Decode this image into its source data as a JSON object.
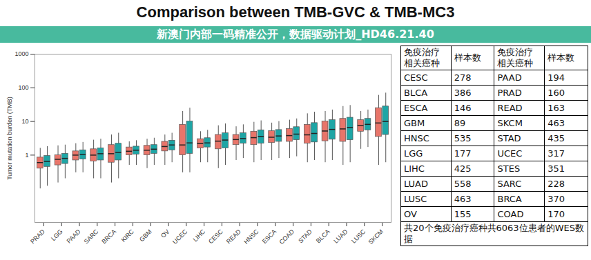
{
  "overlay_text": "新澳门内部一码精准公开，数据驱动计划_HD46.21.40",
  "chart_data": {
    "type": "box",
    "title": "Comparison between TMB-GVC & TMB-MC3",
    "ylabel": "Tumor mutation burden (TMB)",
    "log": "y",
    "ylim": [
      0.01,
      1000
    ],
    "yticks": [
      1,
      10,
      100,
      1000
    ],
    "categories": [
      "PRAD",
      "LGG",
      "PAAD",
      "SARC",
      "BRCA",
      "KIRC",
      "GBM",
      "OV",
      "UCEC",
      "LIHC",
      "CESC",
      "READ",
      "HNSC",
      "ESCA",
      "COAD",
      "STAD",
      "BLCA",
      "LUAD",
      "LUSC",
      "SKCM"
    ],
    "series": [
      {
        "name": "TMB-GVC",
        "color": "#e8756a",
        "whisker_low": [
          0.1,
          0.15,
          0.3,
          0.2,
          0.15,
          0.5,
          0.4,
          0.5,
          0.3,
          0.6,
          0.4,
          0.7,
          0.6,
          0.7,
          0.8,
          0.6,
          0.6,
          0.5,
          1.5,
          0.5
        ],
        "q1": [
          0.4,
          0.5,
          0.7,
          0.65,
          0.6,
          1.0,
          1.0,
          1.3,
          1.0,
          1.6,
          1.5,
          2.0,
          2.0,
          2.3,
          2.5,
          2.2,
          2.6,
          2.5,
          5.0,
          3.5
        ],
        "median": [
          0.6,
          0.75,
          1.0,
          1.0,
          1.1,
          1.3,
          1.4,
          1.8,
          2.0,
          2.2,
          2.6,
          2.9,
          3.3,
          3.4,
          3.8,
          4.0,
          5.2,
          6.0,
          7.5,
          9.0
        ],
        "q3": [
          0.85,
          1.0,
          1.3,
          1.5,
          2.0,
          1.7,
          1.9,
          2.5,
          8.0,
          3.0,
          4.0,
          4.0,
          5.0,
          5.2,
          6.0,
          8.0,
          10,
          12,
          11,
          25
        ],
        "whisker_high": [
          1.6,
          1.9,
          2.2,
          2.8,
          4.0,
          2.5,
          3.0,
          4.0,
          20,
          5.0,
          7.5,
          7.0,
          9.5,
          9.0,
          11,
          17,
          20,
          28,
          20,
          60
        ]
      },
      {
        "name": "TMB-MC3",
        "color": "#1ea5a5",
        "whisker_low": [
          0.12,
          0.2,
          0.3,
          0.2,
          0.2,
          0.5,
          0.5,
          0.6,
          0.3,
          0.6,
          0.5,
          0.8,
          0.7,
          0.8,
          0.9,
          0.7,
          0.7,
          0.6,
          1.7,
          0.6
        ],
        "q1": [
          0.45,
          0.55,
          0.75,
          0.7,
          0.7,
          1.05,
          1.1,
          1.4,
          1.1,
          1.7,
          1.6,
          2.2,
          2.2,
          2.5,
          2.8,
          2.4,
          2.9,
          2.8,
          5.5,
          4.0
        ],
        "median": [
          0.65,
          0.8,
          1.05,
          1.1,
          1.2,
          1.4,
          1.5,
          2.0,
          2.3,
          2.3,
          2.8,
          3.1,
          3.6,
          3.7,
          4.2,
          4.4,
          5.8,
          6.6,
          8.2,
          10
        ],
        "q3": [
          0.95,
          1.1,
          1.4,
          1.6,
          2.2,
          1.8,
          2.0,
          2.7,
          10,
          3.2,
          4.5,
          4.5,
          5.5,
          5.6,
          6.8,
          9.0,
          11,
          13,
          12,
          28
        ],
        "whisker_high": [
          1.8,
          2.0,
          2.4,
          3.0,
          4.5,
          2.7,
          3.2,
          4.5,
          25,
          5.5,
          8.5,
          8.0,
          10.5,
          10,
          12,
          19,
          22,
          30,
          22,
          70
        ]
      }
    ]
  },
  "table": {
    "header": [
      "免疫治疗相关癌种",
      "样本数",
      "免疫治疗相关癌种",
      "样本数"
    ],
    "rows": [
      [
        "CESC",
        278,
        "PAAD",
        194
      ],
      [
        "BLCA",
        386,
        "PRAD",
        160
      ],
      [
        "ESCA",
        146,
        "READ",
        163
      ],
      [
        "GBM",
        89,
        "SKCM",
        463
      ],
      [
        "HNSC",
        535,
        "STAD",
        435
      ],
      [
        "LGG",
        177,
        "UCEC",
        317
      ],
      [
        "LIHC",
        425,
        "STES",
        351
      ],
      [
        "LUAD",
        558,
        "SARC",
        228
      ],
      [
        "LUSC",
        463,
        "BRCA",
        370
      ],
      [
        "OV",
        155,
        "COAD",
        170
      ]
    ],
    "footer": "共20个免疫治疗癌种共6063位患者的WES数据"
  }
}
